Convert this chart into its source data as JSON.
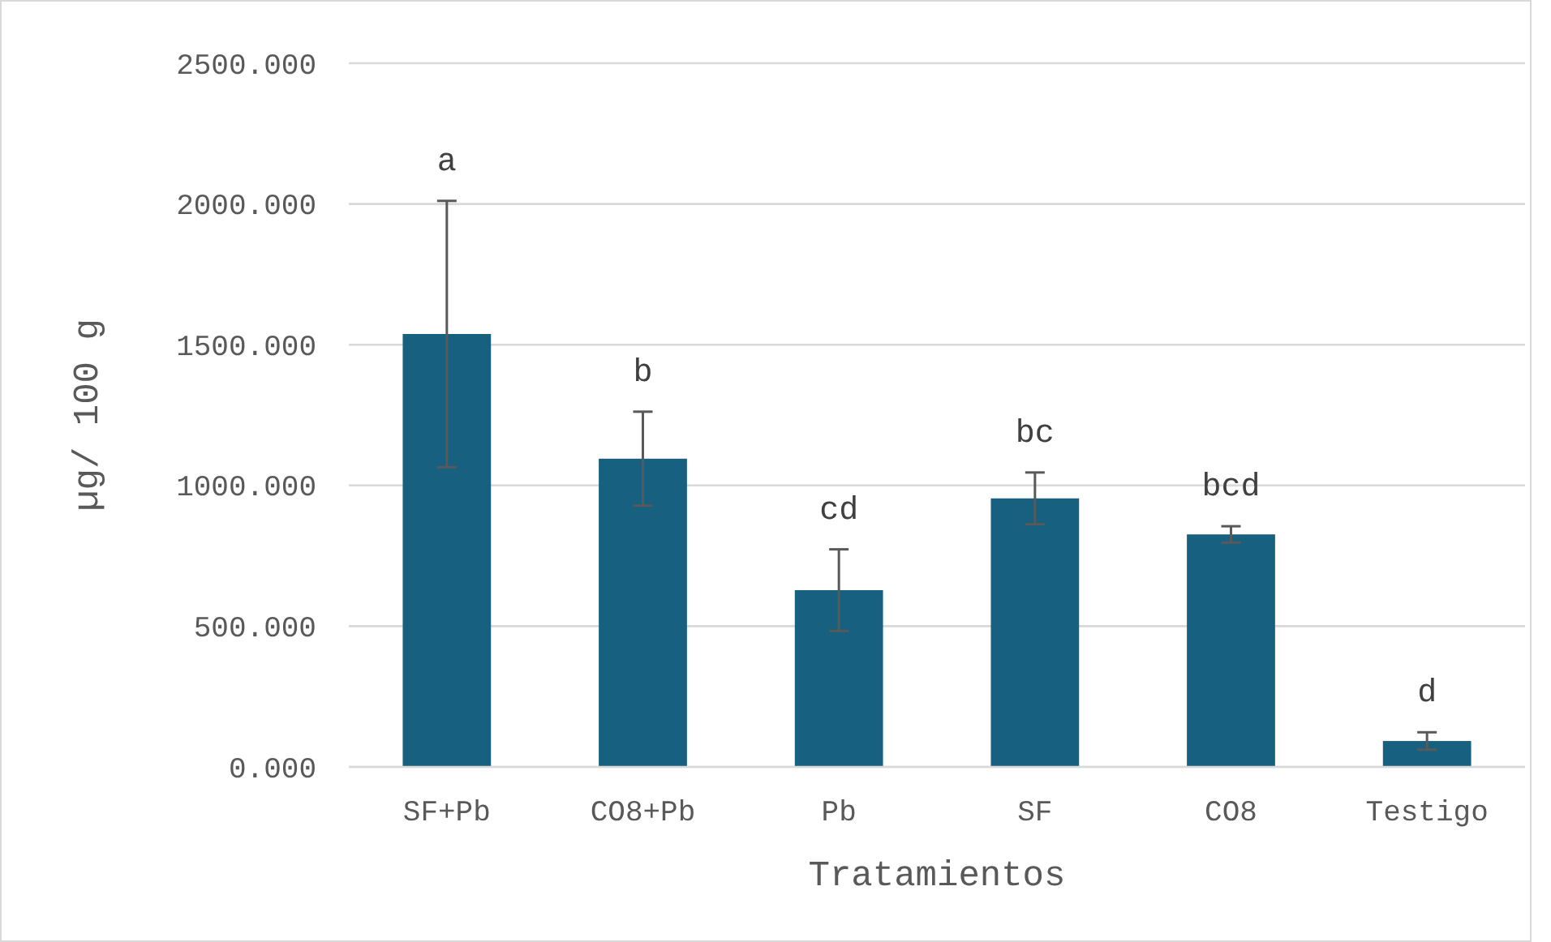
{
  "chart_data": {
    "type": "bar",
    "xlabel": "Tratamientos",
    "ylabel": "µg/ 100 g",
    "categories": [
      "SF+Pb",
      "CO8+Pb",
      "Pb",
      "SF",
      "CO8",
      "Testigo"
    ],
    "values": [
      1538,
      1095,
      628,
      954,
      826,
      92
    ],
    "errors": [
      473,
      167,
      145,
      92,
      29,
      31
    ],
    "color": "#17607f",
    "ylim": [
      0,
      2500
    ],
    "yticks": [
      {
        "value": 0,
        "label": "0.000"
      },
      {
        "value": 500,
        "label": "500.000"
      },
      {
        "value": 1000,
        "label": "1000.000"
      },
      {
        "value": 1500,
        "label": "1500.000"
      },
      {
        "value": 2000,
        "label": "2000.000"
      },
      {
        "value": 2500,
        "label": "2500.000"
      }
    ],
    "grid": "y",
    "annotations": [
      {
        "text": "a",
        "x": "SF+Pb",
        "y": 2011
      },
      {
        "text": "b",
        "x": "CO8+Pb",
        "y": 1262
      },
      {
        "text": "cd",
        "x": "Pb",
        "y": 773
      },
      {
        "text": "bc",
        "x": "SF",
        "y": 1046
      },
      {
        "text": "bcd",
        "x": "CO8",
        "y": 855
      },
      {
        "text": "d",
        "x": "Testigo",
        "y": 123
      }
    ]
  }
}
